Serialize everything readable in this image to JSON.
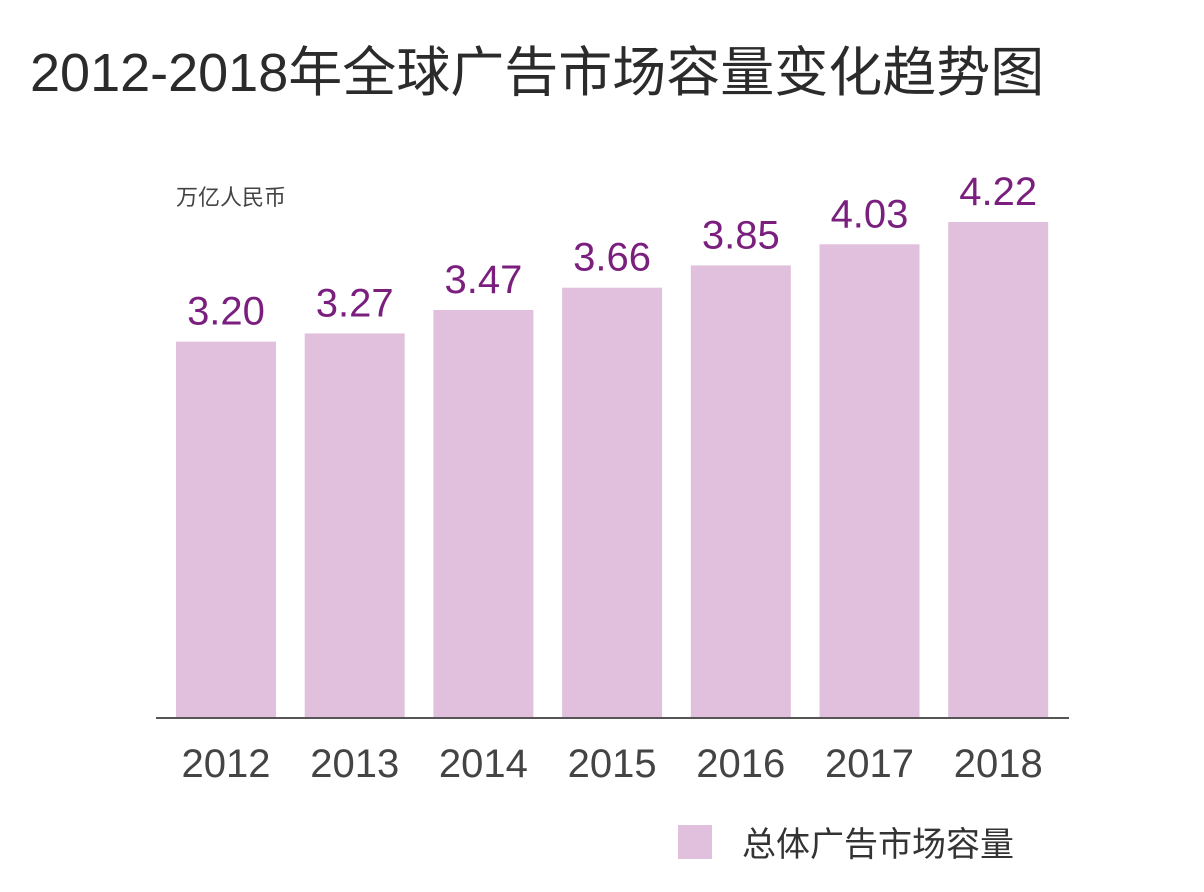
{
  "chart_data": {
    "type": "bar",
    "title": "2012-2018年全球广告市场容量变化趋势图",
    "ylabel": "万亿人民币",
    "categories": [
      "2012",
      "2013",
      "2014",
      "2015",
      "2016",
      "2017",
      "2018"
    ],
    "series": [
      {
        "name": "总体广告市场容量",
        "values": [
          3.2,
          3.27,
          3.47,
          3.66,
          3.85,
          4.03,
          4.22
        ]
      }
    ],
    "data_labels": [
      "3.20",
      "3.27",
      "3.47",
      "3.66",
      "3.85",
      "4.03",
      "4.22"
    ],
    "ylim": [
      0,
      4.22
    ],
    "grid": false,
    "legend_position": "bottom-right",
    "colors": {
      "bar": "#e0c0dc",
      "data_label": "#7a1f7e",
      "tick_label": "#444444",
      "axis": "#555555",
      "title": "#2b2b2b"
    }
  }
}
